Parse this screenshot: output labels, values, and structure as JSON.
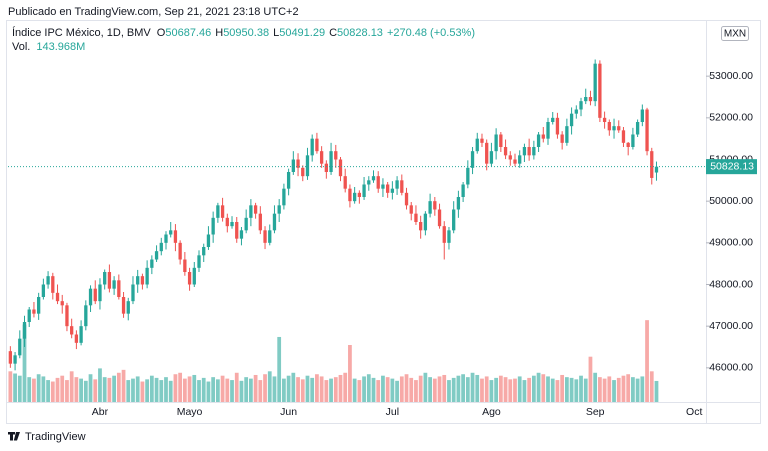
{
  "chart_data": {
    "type": "candlestick",
    "published": "Publicado en TradingView.com, Sep 21, 2021 23:18 UTC+2",
    "legend": [
      {
        "key": "O",
        "value": "50687.46"
      },
      {
        "key": "H",
        "value": "50950.38"
      },
      {
        "key": "L",
        "value": "50491.29"
      },
      {
        "key": "C",
        "value": "50828.13"
      }
    ],
    "change": "+270.48 (+0.53%)",
    "volume_legend": "143.968M",
    "currency": "MXN",
    "last_price_label": "50828.13",
    "footer": "TradingView",
    "categories": [
      null,
      null,
      null,
      null,
      null,
      null,
      null,
      null,
      null,
      null,
      null,
      null,
      null,
      null,
      null,
      null,
      null,
      null,
      null,
      "Abr",
      null,
      null,
      null,
      null,
      null,
      null,
      null,
      null,
      null,
      null,
      null,
      null,
      null,
      null,
      null,
      null,
      null,
      null,
      "Mayo",
      null,
      null,
      null,
      null,
      null,
      null,
      null,
      null,
      null,
      null,
      null,
      null,
      null,
      null,
      null,
      null,
      null,
      null,
      null,
      null,
      "Jun",
      null,
      null,
      null,
      null,
      null,
      null,
      null,
      null,
      null,
      null,
      null,
      null,
      null,
      null,
      null,
      null,
      null,
      null,
      null,
      null,
      null,
      "Jul",
      null,
      null,
      null,
      null,
      null,
      null,
      null,
      null,
      null,
      null,
      null,
      null,
      null,
      null,
      null,
      null,
      null,
      null,
      null,
      null,
      "Ago",
      null,
      null,
      null,
      null,
      null,
      null,
      null,
      null,
      null,
      null,
      null,
      null,
      null,
      null,
      null,
      null,
      null,
      null,
      null,
      null,
      null,
      "Sep",
      null,
      null,
      null,
      null,
      null,
      null,
      null,
      null,
      null,
      null,
      null,
      null,
      null,
      null,
      null,
      null,
      null,
      null,
      null,
      null,
      "Oct",
      null,
      null
    ],
    "series": [
      {
        "name": "Índice IPC México, 1D, BMV",
        "up_color": "#26a69a",
        "down_color": "#ef5350",
        "open": [
          46400,
          46100,
          46300,
          46700,
          47100,
          47400,
          47300,
          47700,
          48000,
          48200,
          47800,
          47600,
          47500,
          47000,
          46800,
          46600,
          47000,
          47500,
          47900,
          47600,
          48000,
          48300,
          47900,
          48100,
          47700,
          47300,
          47600,
          48000,
          48200,
          48000,
          48400,
          48600,
          48800,
          49000,
          49200,
          49300,
          49000,
          48600,
          48300,
          48000,
          48400,
          48700,
          48900,
          49200,
          49600,
          49900,
          49600,
          49400,
          49500,
          49100,
          49300,
          49600,
          49900,
          49700,
          49300,
          49000,
          49300,
          49700,
          49900,
          50300,
          50700,
          51000,
          50800,
          50600,
          51100,
          51500,
          51200,
          50900,
          50700,
          51200,
          51000,
          50600,
          50300,
          50000,
          50200,
          50100,
          50400,
          50500,
          50600,
          50300,
          50400,
          50200,
          50300,
          50500,
          50200,
          49900,
          49700,
          49500,
          49300,
          49700,
          50000,
          49800,
          49400,
          49000,
          49300,
          49800,
          50100,
          50400,
          50800,
          51200,
          51500,
          51400,
          50900,
          51200,
          51600,
          51300,
          51100,
          51000,
          50900,
          51100,
          51300,
          51100,
          51300,
          51600,
          51500,
          51900,
          52000,
          51600,
          51400,
          51800,
          52100,
          52200,
          52400,
          52500,
          52400,
          53300,
          52000,
          51900,
          51700,
          51800,
          51700,
          51400,
          51300,
          51600,
          51900,
          52200,
          51200,
          50687.46,
          null,
          null,
          null,
          null,
          null,
          null,
          null,
          null,
          null,
          null
        ],
        "high": [
          46520,
          46380,
          46900,
          47250,
          47460,
          47580,
          47800,
          48140,
          48320,
          48280,
          48000,
          47750,
          47560,
          47180,
          46900,
          47140,
          47620,
          47980,
          48100,
          48150,
          48360,
          48480,
          48200,
          48240,
          47820,
          47680,
          48200,
          48350,
          48260,
          48580,
          48700,
          48940,
          49120,
          49280,
          49500,
          49450,
          49060,
          48780,
          48400,
          48540,
          48820,
          48980,
          49400,
          49750,
          49960,
          50080,
          49700,
          49640,
          49620,
          49380,
          49800,
          50050,
          49960,
          49880,
          49400,
          49440,
          49900,
          50050,
          50420,
          50780,
          51200,
          51150,
          50860,
          51280,
          51600,
          51640,
          51320,
          50980,
          51400,
          51350,
          51060,
          50780,
          50400,
          50340,
          50260,
          50580,
          50600,
          50740,
          50720,
          50550,
          50460,
          50480,
          50600,
          50640,
          50320,
          49980,
          49900,
          49650,
          49760,
          50180,
          50100,
          49940,
          49520,
          49380,
          50000,
          50250,
          50460,
          50980,
          51300,
          51640,
          51620,
          51480,
          51400,
          51750,
          51660,
          51480,
          51200,
          51140,
          51220,
          51380,
          51500,
          51450,
          51660,
          51780,
          52000,
          52140,
          52120,
          51680,
          51980,
          52250,
          52300,
          52480,
          52700,
          52650,
          53400,
          53380,
          52150,
          51960,
          51980,
          51940,
          51780,
          51420,
          51760,
          51960,
          52320,
          52240,
          51280,
          50950.38,
          null,
          null,
          null,
          null,
          null,
          null,
          null,
          null,
          null,
          null
        ],
        "low": [
          46000,
          45940,
          46230,
          46500,
          46980,
          47210,
          47150,
          47640,
          47900,
          47640,
          47530,
          47300,
          46880,
          46710,
          46450,
          46540,
          46900,
          47340,
          47530,
          47400,
          47880,
          47810,
          47750,
          47640,
          47200,
          47140,
          47530,
          47800,
          47880,
          47910,
          48250,
          48540,
          48700,
          48840,
          49130,
          48800,
          48480,
          48210,
          47850,
          47940,
          48300,
          48540,
          48830,
          49000,
          49480,
          49510,
          49250,
          49340,
          49000,
          48940,
          49230,
          49400,
          49580,
          49210,
          48850,
          48940,
          49230,
          49500,
          49800,
          50140,
          50630,
          50600,
          50480,
          50510,
          50950,
          51140,
          50800,
          50540,
          50630,
          50800,
          50480,
          50210,
          49850,
          49940,
          49940,
          50030,
          50250,
          50440,
          50200,
          50100,
          50080,
          50040,
          50150,
          50140,
          49800,
          49540,
          49430,
          49100,
          49180,
          49610,
          49650,
          49340,
          48600,
          48840,
          49230,
          49600,
          49980,
          50310,
          50650,
          51140,
          51300,
          50740,
          50830,
          51000,
          51180,
          51010,
          50850,
          50840,
          50800,
          50940,
          50970,
          51000,
          51180,
          51410,
          51350,
          51840,
          51500,
          51240,
          51330,
          51600,
          51980,
          52040,
          52330,
          52300,
          52280,
          51900,
          51740,
          51570,
          51500,
          51640,
          51300,
          51100,
          51240,
          51540,
          51800,
          51100,
          50400,
          50491.29,
          null,
          null,
          null,
          null,
          null,
          null,
          null,
          null,
          null,
          null
        ],
        "close": [
          46100,
          46300,
          46700,
          47100,
          47400,
          47300,
          47700,
          48000,
          48200,
          47800,
          47600,
          47500,
          47000,
          46800,
          46600,
          47000,
          47500,
          47900,
          47600,
          48000,
          48300,
          47900,
          48100,
          47700,
          47300,
          47600,
          48000,
          48200,
          48000,
          48400,
          48600,
          48800,
          49000,
          49200,
          49300,
          49000,
          48600,
          48300,
          48000,
          48400,
          48700,
          48900,
          49200,
          49600,
          49900,
          49600,
          49400,
          49500,
          49100,
          49300,
          49600,
          49900,
          49700,
          49300,
          49000,
          49300,
          49700,
          49900,
          50300,
          50700,
          51000,
          50800,
          50600,
          51100,
          51500,
          51200,
          50900,
          50700,
          51200,
          51000,
          50600,
          50300,
          50000,
          50200,
          50100,
          50400,
          50500,
          50600,
          50300,
          50400,
          50200,
          50300,
          50500,
          50200,
          49900,
          49700,
          49500,
          49300,
          49700,
          50000,
          49800,
          49400,
          49000,
          49300,
          49800,
          50100,
          50400,
          50800,
          51200,
          51500,
          51400,
          50900,
          51200,
          51600,
          51300,
          51100,
          51000,
          50900,
          51100,
          51300,
          51100,
          51300,
          51600,
          51500,
          51900,
          52000,
          51600,
          51400,
          51800,
          52100,
          52200,
          52400,
          52500,
          52400,
          53300,
          52000,
          51900,
          51700,
          51800,
          51700,
          51400,
          51300,
          51600,
          51900,
          52200,
          51200,
          50557.65,
          50828.13,
          null,
          null,
          null,
          null,
          null,
          null,
          null,
          null,
          null,
          null
        ]
      },
      {
        "name": "Vol.",
        "axis": "y2",
        "up_color": "#80cbc4",
        "down_color": "#f7a9a7",
        "values": [
          210,
          195,
          180,
          530,
          170,
          160,
          190,
          175,
          150,
          140,
          165,
          180,
          150,
          210,
          170,
          160,
          145,
          190,
          155,
          230,
          170,
          165,
          180,
          200,
          220,
          150,
          160,
          175,
          140,
          155,
          180,
          165,
          150,
          170,
          145,
          190,
          200,
          160,
          175,
          185,
          150,
          165,
          140,
          170,
          155,
          180,
          160,
          150,
          200,
          145,
          170,
          160,
          185,
          150,
          190,
          210,
          175,
          445,
          160,
          180,
          200,
          170,
          155,
          180,
          165,
          190,
          175,
          150,
          160,
          170,
          185,
          200,
          390,
          160,
          150,
          175,
          190,
          165,
          150,
          180,
          170,
          160,
          145,
          175,
          190,
          165,
          150,
          180,
          200,
          170,
          160,
          175,
          185,
          150,
          165,
          180,
          190,
          170,
          200,
          185,
          160,
          175,
          150,
          165,
          180,
          170,
          155,
          160,
          175,
          150,
          165,
          180,
          200,
          190,
          175,
          160,
          150,
          185,
          170,
          165,
          155,
          180,
          160,
          310,
          200,
          170,
          160,
          175,
          150,
          165,
          180,
          190,
          170,
          160,
          175,
          560,
          210,
          143.968,
          null,
          null,
          null,
          null,
          null,
          null,
          null,
          null,
          null,
          null
        ]
      }
    ],
    "ylim": [
      45180,
      54300
    ],
    "yticks": [
      {
        "value": 46000,
        "label": "46000.00"
      },
      {
        "value": 47000,
        "label": "47000.00"
      },
      {
        "value": 48000,
        "label": "48000.00"
      },
      {
        "value": 49000,
        "label": "49000.00"
      },
      {
        "value": 50000,
        "label": "50000.00"
      },
      {
        "value": 51000,
        "label": "51000.00"
      },
      {
        "value": 52000,
        "label": "52000.00"
      },
      {
        "value": 53000,
        "label": "53000.00"
      }
    ],
    "y2lim": [
      0,
      2600
    ],
    "grid": false
  }
}
